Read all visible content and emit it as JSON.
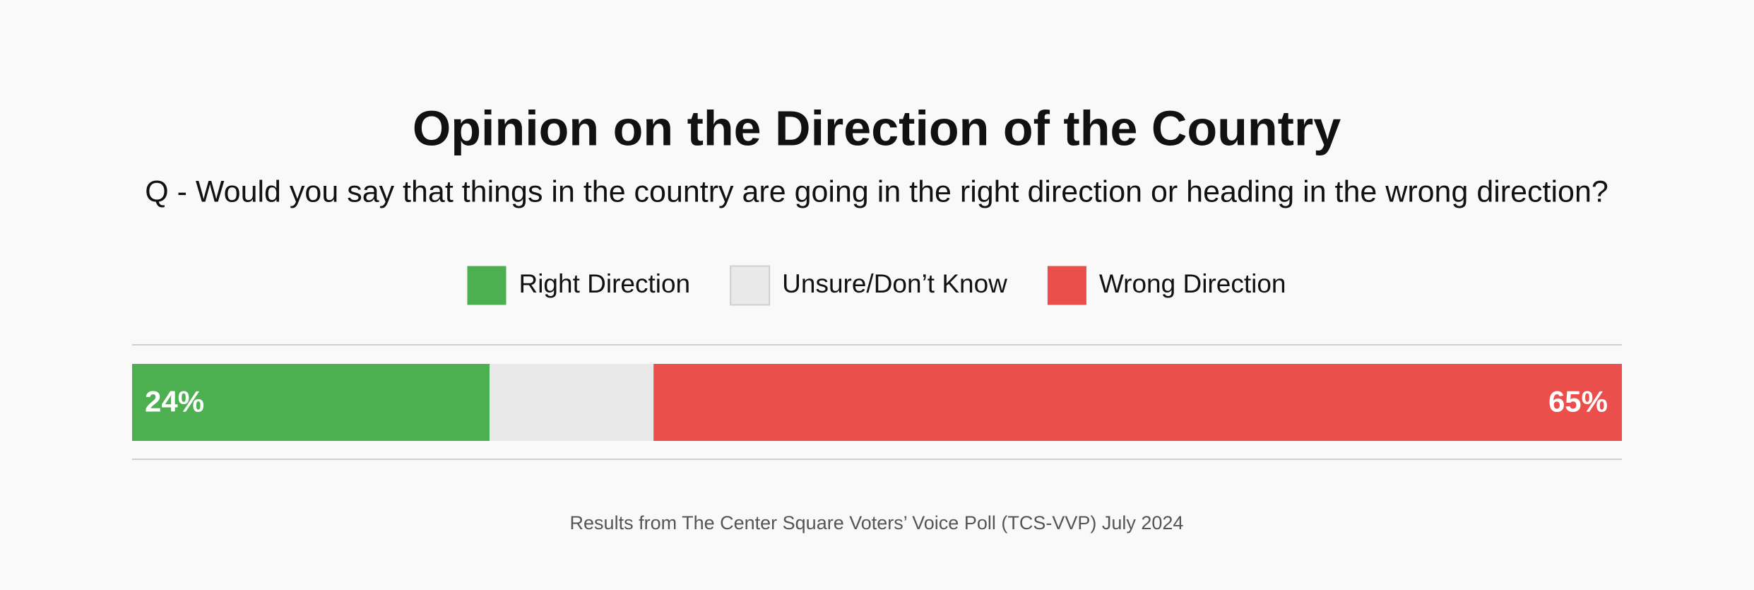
{
  "chart_data": {
    "type": "stacked-bar",
    "orientation": "horizontal",
    "title": "Opinion on the Direction of the Country",
    "subtitle": "Q - Would you say that things in the country are going in the right direction or heading in the wrong direction?",
    "categories": [
      null
    ],
    "series": [
      {
        "name": "Right Direction",
        "color": "#4caf50",
        "values": [
          24
        ],
        "value_labels": [
          "24%"
        ]
      },
      {
        "name": "Unsure/Don’t Know",
        "color": "#e9e9e9",
        "values": [
          11
        ],
        "value_labels": [
          null
        ]
      },
      {
        "name": "Wrong Direction",
        "color": "#ea4f4b",
        "values": [
          65
        ],
        "value_labels": [
          "65%"
        ]
      }
    ],
    "xlim": [
      0,
      100
    ],
    "legend": "top",
    "source": "Results from The Center Square Voters’ Voice Poll (TCS-VVP) July 2024"
  }
}
